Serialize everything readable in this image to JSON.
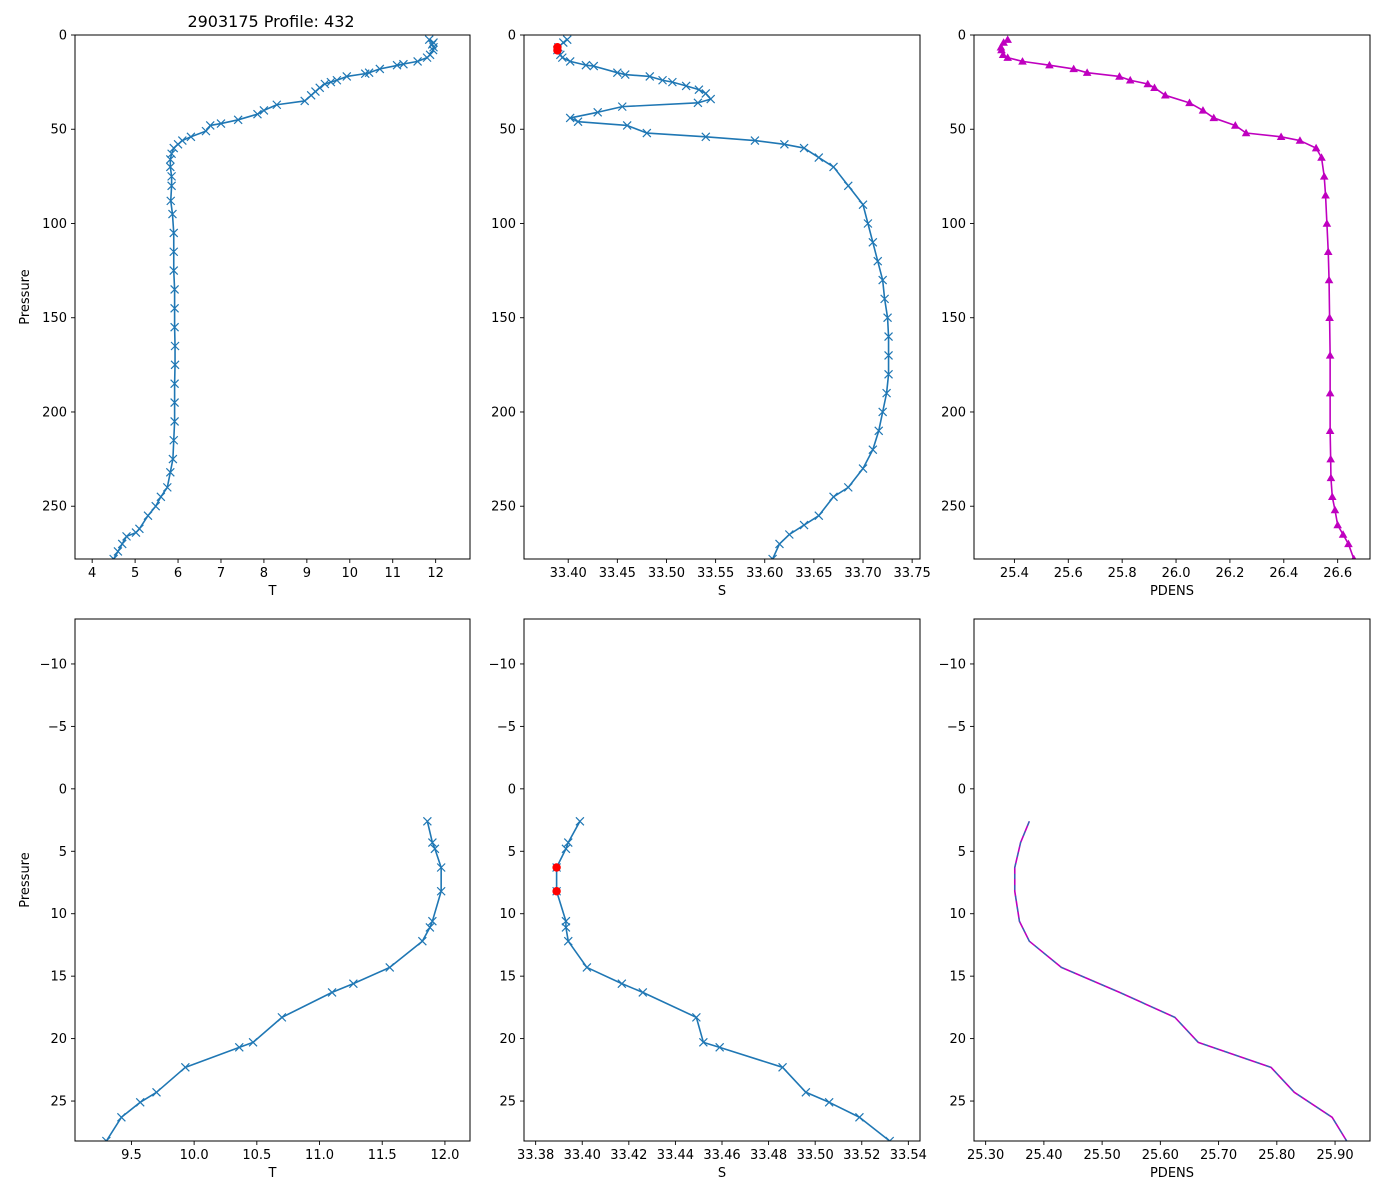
{
  "figure_title": "2903175 Profile: 432",
  "colors": {
    "line": "#1f77b4",
    "pdens": "#bf00bf",
    "flag": "#ff0000",
    "axis": "#000000"
  },
  "chart_data": [
    {
      "id": "top-temperature",
      "type": "line",
      "xlabel": "T",
      "ylabel": "Pressure",
      "xlim": [
        3.6,
        12.8
      ],
      "ylim": [
        278,
        0
      ],
      "xticks": [
        4,
        5,
        6,
        7,
        8,
        9,
        10,
        11,
        12
      ],
      "yticks": [
        0,
        50,
        100,
        150,
        200,
        250
      ],
      "marker": "x",
      "title": "2903175 Profile: 432",
      "series": [
        {
          "name": "T",
          "x": [
            11.85,
            11.95,
            11.92,
            11.95,
            11.94,
            11.87,
            11.8,
            11.58,
            11.1,
            11.25,
            10.7,
            10.45,
            10.36,
            9.93,
            9.7,
            9.56,
            9.42,
            9.3,
            9.2,
            9.1,
            8.95,
            8.3,
            8.0,
            7.85,
            7.4,
            7.0,
            6.75,
            6.65,
            6.3,
            6.1,
            6.0,
            5.9,
            5.85,
            5.82,
            5.82,
            5.85,
            5.85,
            5.83,
            5.87,
            5.9,
            5.9,
            5.9,
            5.92,
            5.92,
            5.92,
            5.93,
            5.93,
            5.92,
            5.92,
            5.92,
            5.9,
            5.88,
            5.82,
            5.75,
            5.6,
            5.48,
            5.3,
            5.1,
            5.02,
            4.8,
            4.7,
            4.6,
            4.5
          ],
          "y": [
            2.5,
            4,
            5,
            6.5,
            8,
            10.5,
            12,
            14,
            16,
            15.5,
            18,
            20,
            20.5,
            22,
            24,
            25,
            26,
            28,
            30,
            32,
            35,
            37,
            40,
            42,
            45,
            47,
            48,
            51,
            54,
            56,
            58,
            60,
            63,
            66,
            70,
            75,
            80,
            88,
            95,
            105,
            115,
            125,
            135,
            145,
            155,
            165,
            175,
            185,
            195,
            205,
            215,
            225,
            232,
            240,
            245,
            250,
            255,
            262,
            264,
            266,
            270,
            274,
            278
          ]
        }
      ]
    },
    {
      "id": "top-salinity",
      "type": "line",
      "xlabel": "S",
      "ylabel": "",
      "xlim": [
        33.355,
        33.758
      ],
      "ylim": [
        278,
        0
      ],
      "xticks": [
        33.4,
        33.45,
        33.5,
        33.55,
        33.6,
        33.65,
        33.7,
        33.75
      ],
      "yticks": [
        0,
        50,
        100,
        150,
        200,
        250
      ],
      "marker": "x",
      "series": [
        {
          "name": "S",
          "x": [
            33.399,
            33.395,
            33.39,
            33.389,
            33.392,
            33.394,
            33.402,
            33.418,
            33.426,
            33.45,
            33.458,
            33.483,
            33.496,
            33.506,
            33.52,
            33.533,
            33.54,
            33.545,
            33.532,
            33.455,
            33.43,
            33.402,
            33.41,
            33.46,
            33.48,
            33.54,
            33.59,
            33.62,
            33.64,
            33.655,
            33.67,
            33.685,
            33.7,
            33.705,
            33.71,
            33.715,
            33.72,
            33.722,
            33.725,
            33.726,
            33.726,
            33.726,
            33.724,
            33.72,
            33.716,
            33.71,
            33.7,
            33.685,
            33.67,
            33.655,
            33.64,
            33.625,
            33.615,
            33.608
          ],
          "y": [
            2.5,
            4,
            6.5,
            8,
            10.5,
            12,
            14,
            16,
            16.5,
            20,
            21,
            22,
            24,
            25,
            27,
            29,
            31,
            34,
            36,
            38,
            41,
            44,
            46,
            48,
            52,
            54,
            56,
            58,
            60,
            65,
            70,
            80,
            90,
            100,
            110,
            120,
            130,
            140,
            150,
            160,
            170,
            180,
            190,
            200,
            210,
            220,
            230,
            240,
            245,
            255,
            260,
            265,
            270,
            278
          ]
        },
        {
          "name": "flag",
          "x": [
            33.389,
            33.389
          ],
          "y": [
            6.5,
            8.2
          ]
        }
      ]
    },
    {
      "id": "top-density",
      "type": "line",
      "xlabel": "PDENS",
      "ylabel": "",
      "xlim": [
        25.25,
        26.72
      ],
      "ylim": [
        278,
        0
      ],
      "xticks": [
        25.4,
        25.6,
        25.8,
        26.0,
        26.2,
        26.4,
        26.6
      ],
      "yticks": [
        0,
        50,
        100,
        150,
        200,
        250
      ],
      "marker": "triangle",
      "series": [
        {
          "name": "PDENS",
          "x": [
            25.375,
            25.36,
            25.35,
            25.352,
            25.358,
            25.375,
            25.43,
            25.53,
            25.62,
            25.67,
            25.79,
            25.83,
            25.895,
            25.92,
            25.96,
            26.05,
            26.1,
            26.14,
            26.22,
            26.26,
            26.39,
            26.46,
            26.52,
            26.54,
            26.55,
            26.555,
            26.56,
            26.565,
            26.568,
            26.57,
            26.572,
            26.572,
            26.572,
            26.574,
            26.575,
            26.58,
            26.59,
            26.6,
            26.62,
            26.64,
            26.66
          ],
          "y": [
            2.5,
            4,
            6.5,
            8,
            10.5,
            12,
            14,
            16,
            18,
            20,
            22,
            24,
            26,
            28,
            32,
            36,
            40,
            44,
            48,
            52,
            54,
            56,
            60,
            65,
            75,
            85,
            100,
            115,
            130,
            150,
            170,
            190,
            210,
            225,
            235,
            245,
            252,
            260,
            265,
            270,
            278
          ]
        }
      ]
    },
    {
      "id": "bottom-temperature",
      "type": "line",
      "xlabel": "T",
      "ylabel": "Pressure",
      "xlim": [
        9.05,
        12.2
      ],
      "ylim": [
        28.2,
        -13.6
      ],
      "xticks": [
        9.5,
        10.0,
        10.5,
        11.0,
        11.5,
        12.0
      ],
      "yticks": [
        -10,
        -5,
        0,
        5,
        10,
        15,
        20,
        25
      ],
      "marker": "x",
      "series": [
        {
          "name": "T",
          "x": [
            11.86,
            11.9,
            11.92,
            11.97,
            11.97,
            11.9,
            11.88,
            11.82,
            11.56,
            11.27,
            11.1,
            10.7,
            10.47,
            10.36,
            9.93,
            9.7,
            9.57,
            9.42,
            9.3
          ],
          "y": [
            2.6,
            4.3,
            4.8,
            6.3,
            8.2,
            10.6,
            11.1,
            12.2,
            14.3,
            15.6,
            16.3,
            18.3,
            20.3,
            20.7,
            22.3,
            24.3,
            25.1,
            26.3,
            28.2
          ]
        }
      ]
    },
    {
      "id": "bottom-salinity",
      "type": "line",
      "xlabel": "S",
      "ylabel": "",
      "xlim": [
        33.375,
        33.545
      ],
      "ylim": [
        28.2,
        -13.6
      ],
      "xticks": [
        33.38,
        33.4,
        33.42,
        33.44,
        33.46,
        33.48,
        33.5,
        33.52,
        33.54
      ],
      "yticks": [
        -10,
        -5,
        0,
        5,
        10,
        15,
        20,
        25
      ],
      "marker": "x",
      "series": [
        {
          "name": "S",
          "x": [
            33.399,
            33.394,
            33.393,
            33.389,
            33.389,
            33.393,
            33.393,
            33.394,
            33.402,
            33.417,
            33.426,
            33.449,
            33.452,
            33.459,
            33.486,
            33.496,
            33.506,
            33.519,
            33.532
          ],
          "y": [
            2.6,
            4.3,
            4.8,
            6.3,
            8.2,
            10.6,
            11.1,
            12.2,
            14.3,
            15.6,
            16.3,
            18.3,
            20.3,
            20.7,
            22.3,
            24.3,
            25.1,
            26.3,
            28.2
          ]
        },
        {
          "name": "flag",
          "x": [
            33.389,
            33.389
          ],
          "y": [
            6.3,
            8.2
          ]
        }
      ]
    },
    {
      "id": "bottom-density",
      "type": "line",
      "xlabel": "PDENS",
      "ylabel": "",
      "xlim": [
        25.28,
        25.96
      ],
      "ylim": [
        28.2,
        -13.6
      ],
      "xticks": [
        25.3,
        25.4,
        25.5,
        25.6,
        25.7,
        25.8,
        25.9
      ],
      "yticks": [
        -10,
        -5,
        0,
        5,
        10,
        15,
        20,
        25
      ],
      "marker": "none",
      "series": [
        {
          "name": "PDENS",
          "x": [
            25.375,
            25.36,
            25.35,
            25.35,
            25.358,
            25.375,
            25.43,
            25.53,
            25.625,
            25.665,
            25.79,
            25.83,
            25.895,
            25.92
          ],
          "y": [
            2.6,
            4.3,
            6.3,
            8.2,
            10.6,
            12.2,
            14.3,
            16.3,
            18.3,
            20.3,
            22.3,
            24.3,
            26.3,
            28.2
          ]
        }
      ]
    }
  ]
}
